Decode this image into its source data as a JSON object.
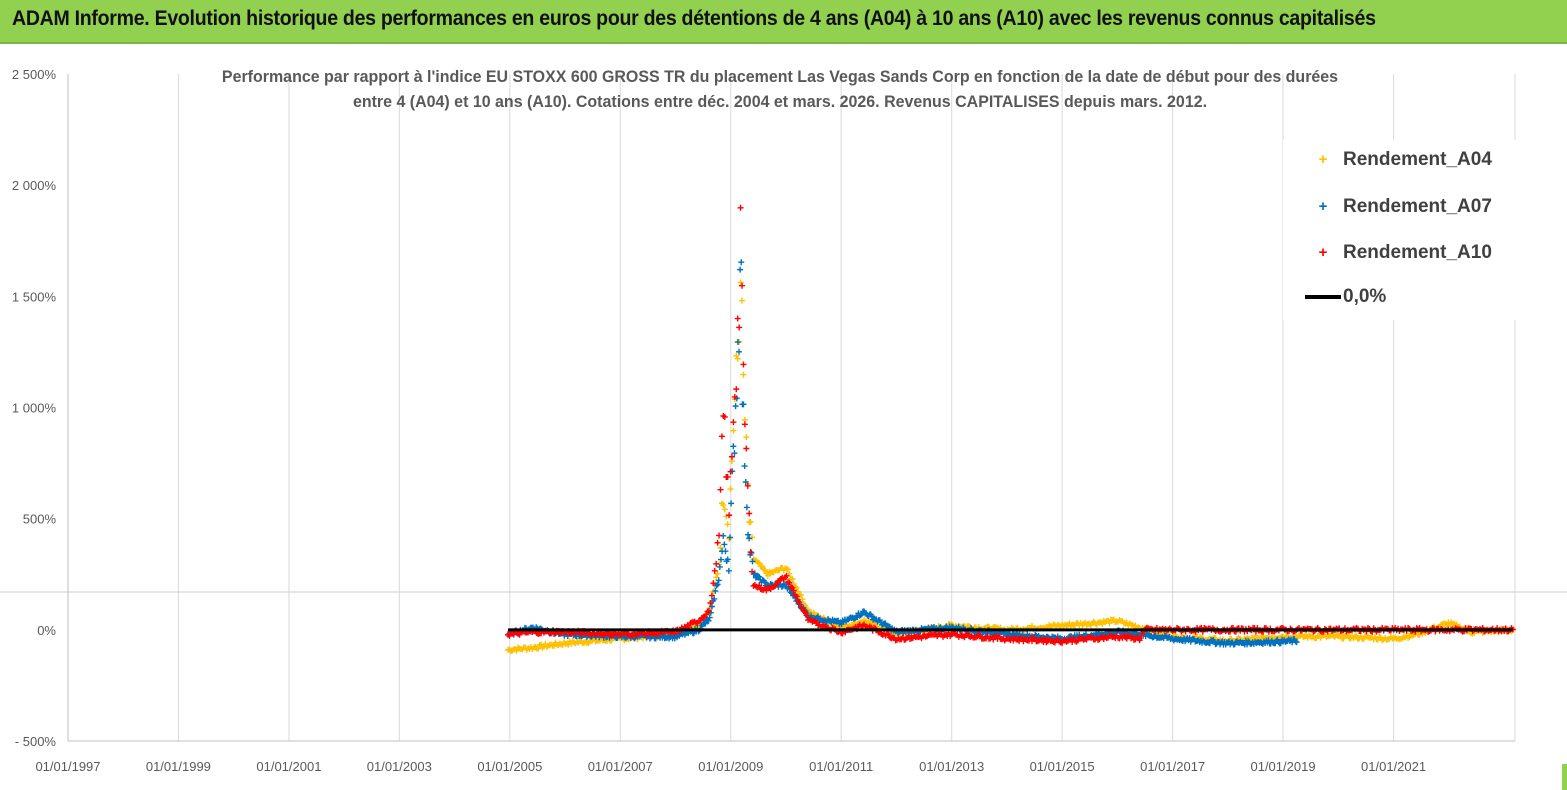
{
  "banner": {
    "title": "ADAM Informe. Evolution historique des performances en euros pour des détentions de 4 ans (A04) à 10 ans (A10) avec les revenus connus capitalisés"
  },
  "colors": {
    "banner": "#92d050",
    "A04": "#ffc000",
    "A07": "#0070c0",
    "A10": "#ff0000",
    "zero": "#000000",
    "grid": "#d9d9d9"
  },
  "chart_data": {
    "type": "scatter",
    "title_line1": "Performance par rapport à l'indice EU STOXX 600 GROSS TR  du placement Las Vegas Sands Corp en fonction de la date de début pour des durées",
    "title_line2": "entre 4 (A04) et 10 ans (A10). Cotations entre déc. 2004 et mars. 2026. Revenus CAPITALISES depuis mars. 2012.",
    "xlabel": "",
    "ylabel": "",
    "x_ticks": [
      "01/01/1997",
      "01/01/1999",
      "01/01/2001",
      "01/01/2003",
      "01/01/2005",
      "01/01/2007",
      "01/01/2009",
      "01/01/2011",
      "01/01/2013",
      "01/01/2015",
      "01/01/2017",
      "01/01/2019",
      "01/01/2021"
    ],
    "y_ticks": [
      "2 500%",
      "2 000%",
      "1 500%",
      "1 000%",
      "500%",
      "0%",
      "- 500%"
    ],
    "x_range": [
      "01/01/1997",
      "2023-03-15"
    ],
    "ylim": [
      -500,
      2500
    ],
    "grid": "vertical",
    "legend_position": "top-right",
    "series": [
      {
        "name": "Rendement_A04",
        "start": "2004-12-20",
        "end": "2023-03-01",
        "points": [
          [
            "2004-12-20",
            -90
          ],
          [
            "2005-06-01",
            -80
          ],
          [
            "2006-01-01",
            -60
          ],
          [
            "2007-01-01",
            -40
          ],
          [
            "2008-01-01",
            -20
          ],
          [
            "2008-06-01",
            20
          ],
          [
            "2008-08-15",
            80
          ],
          [
            "2008-10-15",
            300
          ],
          [
            "2008-11-15",
            650
          ],
          [
            "2008-12-20",
            450
          ],
          [
            "2009-01-20",
            950
          ],
          [
            "2009-02-25",
            1300
          ],
          [
            "2009-03-05",
            1800
          ],
          [
            "2009-03-20",
            1200
          ],
          [
            "2009-05-01",
            500
          ],
          [
            "2009-06-01",
            320
          ],
          [
            "2009-09-01",
            250
          ],
          [
            "2010-01-01",
            280
          ],
          [
            "2010-06-01",
            80
          ],
          [
            "2011-01-01",
            10
          ],
          [
            "2011-06-01",
            40
          ],
          [
            "2012-01-01",
            -20
          ],
          [
            "2013-01-01",
            20
          ],
          [
            "2014-01-01",
            0
          ],
          [
            "2015-01-01",
            20
          ],
          [
            "2016-01-01",
            40
          ],
          [
            "2016-06-01",
            10
          ],
          [
            "2017-01-01",
            -30
          ],
          [
            "2018-01-01",
            -50
          ],
          [
            "2019-01-01",
            -30
          ],
          [
            "2020-01-01",
            -30
          ],
          [
            "2021-01-01",
            -40
          ],
          [
            "2021-06-01",
            -20
          ],
          [
            "2022-01-01",
            30
          ],
          [
            "2022-06-01",
            -10
          ],
          [
            "2023-03-01",
            0
          ]
        ]
      },
      {
        "name": "Rendement_A07",
        "start": "2004-12-20",
        "end": "2019-04-01",
        "points": [
          [
            "2004-12-20",
            -20
          ],
          [
            "2005-06-01",
            10
          ],
          [
            "2006-01-01",
            -20
          ],
          [
            "2007-01-01",
            -30
          ],
          [
            "2008-01-01",
            -30
          ],
          [
            "2008-06-01",
            0
          ],
          [
            "2008-08-15",
            50
          ],
          [
            "2008-10-15",
            250
          ],
          [
            "2008-11-15",
            400
          ],
          [
            "2008-12-20",
            300
          ],
          [
            "2009-01-20",
            800
          ],
          [
            "2009-02-25",
            1400
          ],
          [
            "2009-03-05",
            1900
          ],
          [
            "2009-03-20",
            1000
          ],
          [
            "2009-05-01",
            400
          ],
          [
            "2009-06-01",
            250
          ],
          [
            "2009-09-01",
            200
          ],
          [
            "2010-01-01",
            200
          ],
          [
            "2010-06-01",
            60
          ],
          [
            "2011-01-01",
            30
          ],
          [
            "2011-06-01",
            80
          ],
          [
            "2012-01-01",
            -10
          ],
          [
            "2013-01-01",
            10
          ],
          [
            "2014-01-01",
            -20
          ],
          [
            "2015-01-01",
            -40
          ],
          [
            "2016-01-01",
            -10
          ],
          [
            "2016-06-01",
            -20
          ],
          [
            "2017-01-01",
            -40
          ],
          [
            "2018-01-01",
            -60
          ],
          [
            "2019-04-01",
            -50
          ]
        ]
      },
      {
        "name": "Rendement_A10",
        "start": "2004-12-20",
        "end": "2023-03-01",
        "points": [
          [
            "2004-12-20",
            -20
          ],
          [
            "2005-06-01",
            -10
          ],
          [
            "2006-01-01",
            -10
          ],
          [
            "2007-01-01",
            -20
          ],
          [
            "2008-01-01",
            -10
          ],
          [
            "2008-06-01",
            40
          ],
          [
            "2008-08-15",
            90
          ],
          [
            "2008-10-15",
            400
          ],
          [
            "2008-11-15",
            1000
          ],
          [
            "2008-12-20",
            500
          ],
          [
            "2009-01-20",
            1000
          ],
          [
            "2009-02-25",
            1450
          ],
          [
            "2009-03-05",
            1930
          ],
          [
            "2009-03-20",
            1200
          ],
          [
            "2009-05-01",
            500
          ],
          [
            "2009-06-01",
            200
          ],
          [
            "2009-09-01",
            180
          ],
          [
            "2010-01-01",
            240
          ],
          [
            "2010-06-01",
            40
          ],
          [
            "2011-01-01",
            -10
          ],
          [
            "2011-06-01",
            20
          ],
          [
            "2012-01-01",
            -40
          ],
          [
            "2013-01-01",
            -20
          ],
          [
            "2014-01-01",
            -40
          ],
          [
            "2015-01-01",
            -50
          ],
          [
            "2016-01-01",
            -30
          ],
          [
            "2016-06-01",
            -40
          ],
          [
            "2016-07-01",
            0
          ],
          [
            "2017-01-01",
            0
          ],
          [
            "2019-01-01",
            0
          ],
          [
            "2021-01-01",
            0
          ],
          [
            "2023-03-01",
            0
          ]
        ]
      },
      {
        "name": "0,0%",
        "start": "2004-12-20",
        "end": "2023-03-01",
        "value": 0
      }
    ]
  }
}
